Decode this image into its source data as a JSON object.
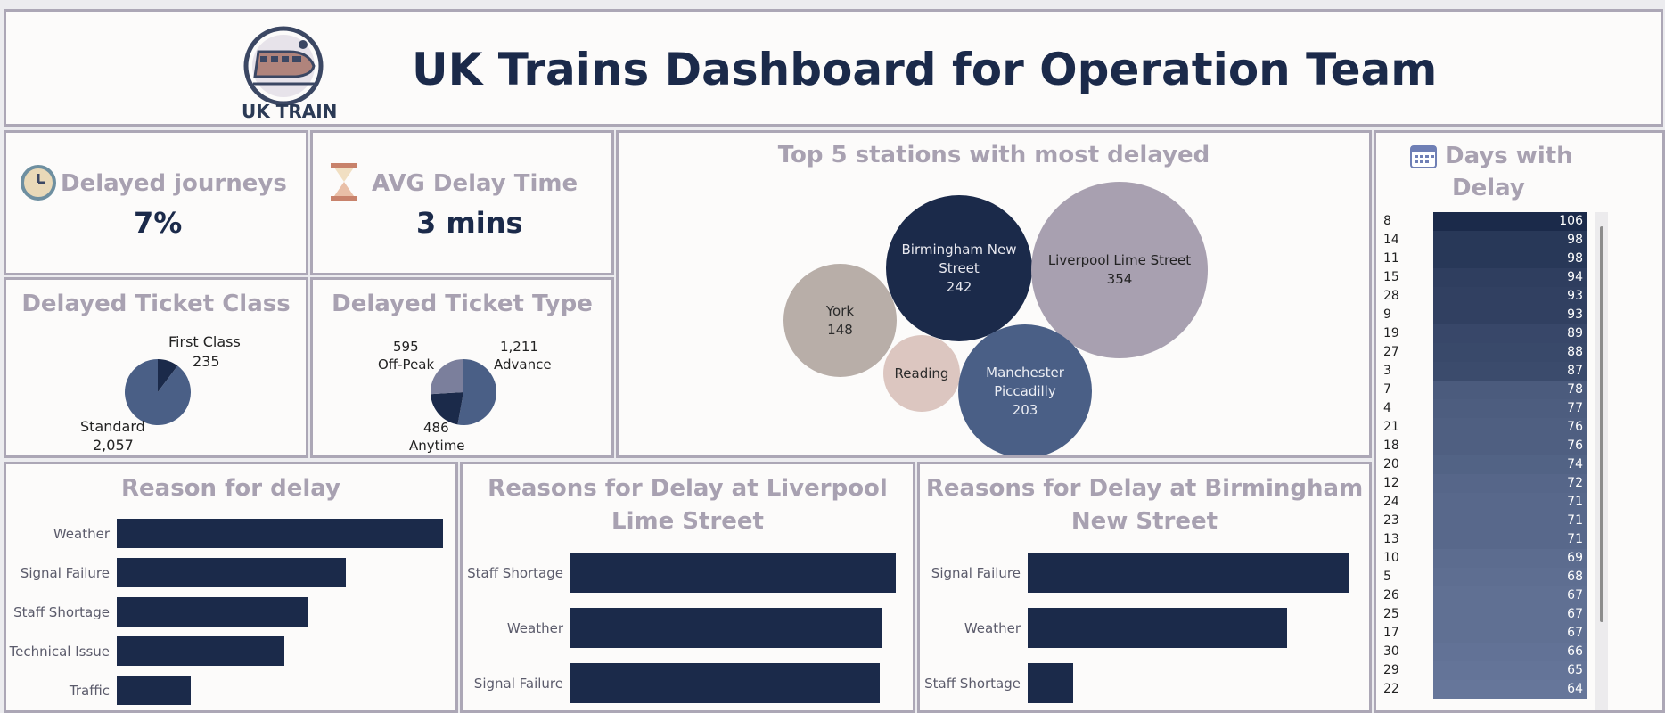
{
  "header": {
    "title": "UK Trains Dashboard for Operation Team",
    "logo_text": "UK TRAIN"
  },
  "kpis": {
    "delayed_journeys": {
      "label": "Delayed journeys",
      "value": "7%",
      "icon": "clock-icon"
    },
    "avg_delay": {
      "label": "AVG Delay Time",
      "value": "3 mins",
      "icon": "hourglass-icon"
    }
  },
  "ticket_class": {
    "title": "Delayed Ticket Class",
    "first_label": "First Class",
    "first_value": "235",
    "standard_label": "Standard",
    "standard_value": "2,057"
  },
  "ticket_type": {
    "title": "Delayed Ticket Type",
    "offpeak_value": "595",
    "offpeak_label": "Off-Peak",
    "advance_value": "1,211",
    "advance_label": "Advance",
    "anytime_value": "486",
    "anytime_label": "Anytime"
  },
  "stations": {
    "title": "Top 5 stations with most delayed",
    "york_name": "York",
    "york_value": "148",
    "bham_name1": "Birmingham New",
    "bham_name2": "Street",
    "bham_value": "242",
    "lpool_name": "Liverpool Lime Street",
    "lpool_value": "354",
    "reading_name": "Reading",
    "manc_name1": "Manchester",
    "manc_name2": "Piccadilly",
    "manc_value": "203"
  },
  "days": {
    "title_line1": "Days with",
    "title_line2": "Delay",
    "icon": "calendar-icon"
  },
  "reasons": {
    "title": "Reason for delay",
    "lpool_title": "Reasons for Delay at Liverpool Lime Street",
    "bham_title": "Reasons for Delay at Birmingham New Street"
  },
  "chart_data": [
    {
      "type": "pie",
      "title": "Delayed Ticket Class",
      "categories": [
        "First Class",
        "Standard"
      ],
      "values": [
        235,
        2057
      ],
      "colors": [
        "#1b2a4a",
        "#4a5f86"
      ]
    },
    {
      "type": "pie",
      "title": "Delayed Ticket Type",
      "categories": [
        "Advance",
        "Anytime",
        "Off-Peak"
      ],
      "values": [
        1211,
        486,
        595
      ],
      "colors": [
        "#4a5f86",
        "#1b2a4a",
        "#7b7f9c"
      ]
    },
    {
      "type": "scatter",
      "title": "Top 5 stations with most delayed",
      "categories": [
        "Liverpool Lime Street",
        "Birmingham New Street",
        "Manchester Piccadilly",
        "York",
        "Reading"
      ],
      "values": [
        354,
        242,
        203,
        148,
        null
      ]
    },
    {
      "type": "bar",
      "title": "Reason for delay",
      "categories": [
        "Weather",
        "Signal Failure",
        "Staff Shortage",
        "Technical Issue",
        "Traffic"
      ],
      "values": [
        995,
        700,
        585,
        511,
        225
      ]
    },
    {
      "type": "bar",
      "title": "Reasons for Delay at Liverpool Lime Street",
      "categories": [
        "Staff Shortage",
        "Weather",
        "Signal Failure"
      ],
      "values": [
        125,
        120,
        119
      ]
    },
    {
      "type": "bar",
      "title": "Reasons for Delay at Birmingham New Street",
      "categories": [
        "Signal Failure",
        "Weather",
        "Staff Shortage"
      ],
      "values": [
        126,
        102,
        18
      ]
    },
    {
      "type": "heatmap",
      "title": "Days with Delay",
      "categories": [
        "8",
        "14",
        "11",
        "15",
        "28",
        "9",
        "19",
        "27",
        "3",
        "7",
        "4",
        "21",
        "18",
        "20",
        "12",
        "24",
        "23",
        "13",
        "10",
        "5",
        "26",
        "25",
        "17",
        "30",
        "29",
        "22"
      ],
      "values": [
        106,
        98,
        98,
        94,
        93,
        93,
        89,
        88,
        87,
        78,
        77,
        76,
        76,
        74,
        72,
        71,
        71,
        71,
        69,
        68,
        67,
        67,
        67,
        66,
        65,
        64
      ]
    }
  ]
}
